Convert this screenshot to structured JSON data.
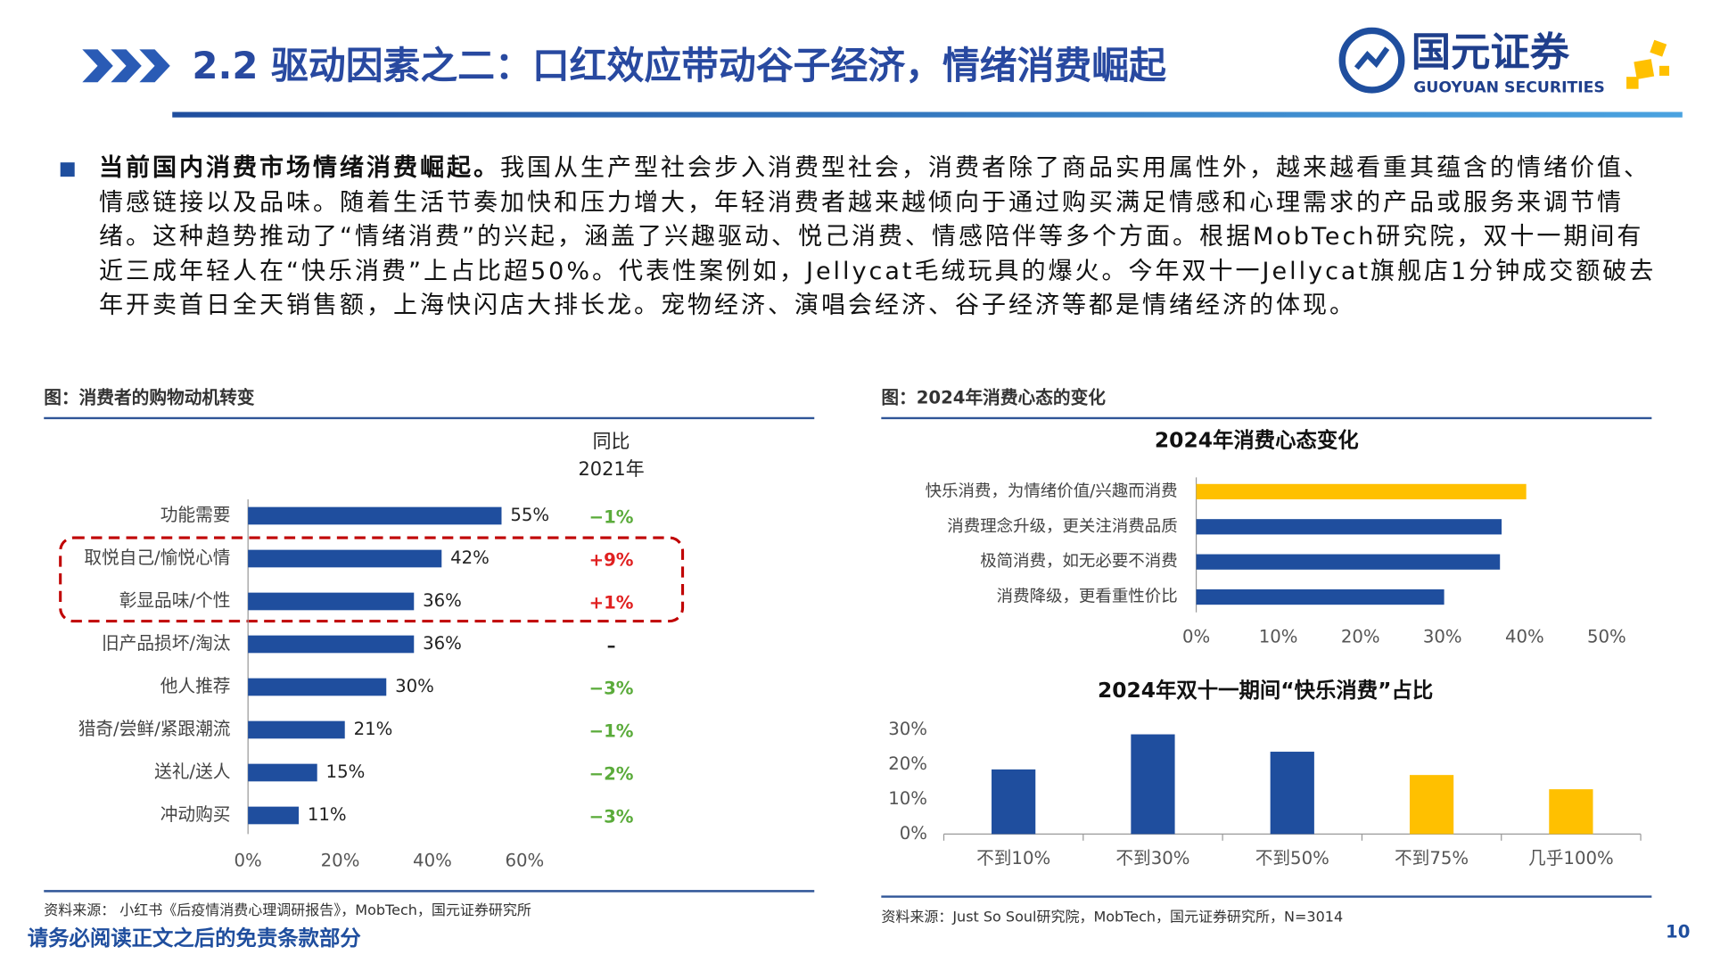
{
  "header": {
    "title": "2.2 驱动因素之二：口红效应带动谷子经济，情绪消费崛起",
    "logo_name": "国元证券",
    "logo_english": "GUOYUAN SECURITIES"
  },
  "body": {
    "lead": "当前国内消费市场情绪消费崛起。",
    "text": "我国从生产型社会步入消费型社会，消费者除了商品实用属性外，越来越看重其蕴含的情绪价值、情感链接以及品味。随着生活节奏加快和压力增大，年轻消费者越来越倾向于通过购买满足情感和心理需求的产品或服务来调节情绪。这种趋势推动了“情绪消费”的兴起，涵盖了兴趣驱动、悦己消费、情感陪伴等多个方面。根据MobTech研究院，双十一期间有近三成年轻人在“快乐消费”上占比超50%。代表性案例如，Jellycat毛绒玩具的爆火。今年双十一Jellycat旗舰店1分钟成交额破去年开卖首日全天销售额，上海快闪店大排长龙。宠物经济、演唱会经济、谷子经济等都是情绪经济的体现。"
  },
  "figures": [
    {
      "caption": "图：消费者的购物动机转变",
      "source": "资料来源： 小红书《后疫情消费心理调研报告》，MobTech，国元证券研究所"
    },
    {
      "caption": "图：2024年消费心态的变化",
      "source": "资料来源：Just So Soul研究院，MobTech，国元证券研究所，N=3014"
    }
  ],
  "chart_data": [
    {
      "type": "barh",
      "categories": [
        "功能需要",
        "取悦自己/愉悦心情",
        "彰显品味/个性",
        "旧产品损坏/淘汰",
        "他人推荐",
        "猎奇/尝鲜/紧跟潮流",
        "送礼/送人",
        "冲动购买"
      ],
      "values": [
        55,
        42,
        36,
        36,
        30,
        21,
        15,
        11
      ],
      "value_labels": [
        "55%",
        "42%",
        "36%",
        "36%",
        "30%",
        "21%",
        "15%",
        "11%"
      ],
      "color": "#1f4e9e",
      "xlim": [
        0,
        60
      ],
      "xticks": [
        {
          "value": 0,
          "label": "0%"
        },
        {
          "value": 20,
          "label": "20%"
        },
        {
          "value": 40,
          "label": "40%"
        },
        {
          "value": 60,
          "label": "60%"
        }
      ],
      "yoy_title": [
        "同比",
        "2021年"
      ],
      "yoy_labels": [
        "−1%",
        "+9%",
        "+1%",
        "–",
        "−3%",
        "−1%",
        "−2%",
        "−3%"
      ]
    },
    {
      "type": "barh",
      "title": "2024年消费心态变化",
      "categories": [
        "快乐消费，为情绪价值/兴趣而消费",
        "消费理念升级，更关注消费品质",
        "极简消费，如无必要不消费",
        "消费降级，更看重性价比"
      ],
      "values": [
        40.2,
        37.2,
        37,
        30.2
      ],
      "colors": [
        "#ffc000",
        "#1f4e9e",
        "#1f4e9e",
        "#1f4e9e"
      ],
      "xlim": [
        0,
        50
      ],
      "xticks": [
        {
          "value": 0,
          "label": "0%"
        },
        {
          "value": 10,
          "label": "10%"
        },
        {
          "value": 20,
          "label": "20%"
        },
        {
          "value": 30,
          "label": "30%"
        },
        {
          "value": 40,
          "label": "40%"
        },
        {
          "value": 50,
          "label": "50%"
        }
      ]
    },
    {
      "type": "bar",
      "title": "2024年双十一期间“快乐消费”占比",
      "categories": [
        "不到10%",
        "不到30%",
        "不到50%",
        "不到75%",
        "几乎100%"
      ],
      "values": [
        18.6,
        28.7,
        23.7,
        17,
        12.9
      ],
      "colors": [
        "#1f4e9e",
        "#1f4e9e",
        "#1f4e9e",
        "#ffc000",
        "#ffc000"
      ],
      "ylim": [
        0,
        30
      ],
      "yticks": [
        {
          "value": 0,
          "label": "0%"
        },
        {
          "value": 10,
          "label": "10%"
        },
        {
          "value": 20,
          "label": "20%"
        },
        {
          "value": 30,
          "label": "30%"
        }
      ]
    }
  ],
  "footer": {
    "disclaimer": "请务必阅读正文之后的免责条款部分",
    "page": 10
  }
}
